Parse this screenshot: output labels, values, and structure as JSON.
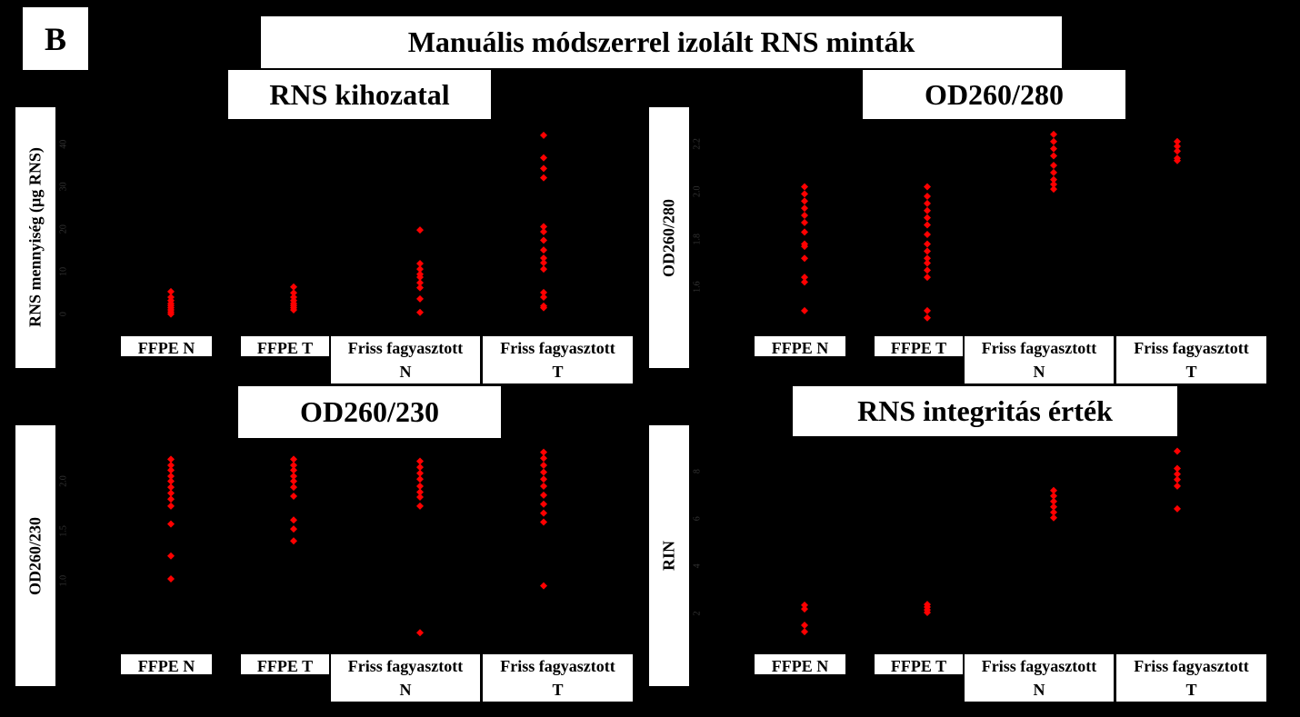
{
  "panel_label": "B",
  "title": "Manuális módszerrel izolált RNS minták",
  "chart_data": [
    {
      "type": "strip",
      "title": "RNS kihozatal",
      "y_label": "RNS mennyiség (µg RNS)",
      "color": "#ff0000",
      "categories": [
        "FFPE N",
        "FFPE T",
        "Friss fagyasztott\nN",
        "Friss fagyasztott\nT"
      ],
      "values": [
        [
          5.3,
          4.0,
          3.2,
          2.5,
          2.0,
          1.5,
          1.0,
          0.5,
          0
        ],
        [
          6.4,
          5.0,
          4.0,
          3.2,
          2.5,
          2.0,
          1.5,
          1.0
        ],
        [
          19.8,
          11.9,
          10.6,
          9.4,
          8.7,
          7.4,
          6.2,
          3.6,
          0.4
        ],
        [
          42.1,
          36.8,
          34.3,
          32.1,
          20.6,
          19.4,
          17.4,
          15.1,
          13.2,
          12.1,
          10.6,
          5.1,
          4.0,
          1.9,
          1.5
        ]
      ],
      "ylim": [
        -2,
        44
      ],
      "yticks": [
        0,
        10,
        20,
        30,
        40
      ]
    },
    {
      "type": "strip",
      "title": "OD260/280",
      "y_label": "OD260/280",
      "color": "#ff0000",
      "categories": [
        "FFPE N",
        "FFPE T",
        "Friss fagyasztott\nN",
        "Friss fagyasztott\nT"
      ],
      "values": [
        [
          2.02,
          1.99,
          1.96,
          1.93,
          1.9,
          1.87,
          1.83,
          1.78,
          1.77,
          1.72,
          1.64,
          1.62,
          1.5
        ],
        [
          2.02,
          1.98,
          1.95,
          1.92,
          1.89,
          1.86,
          1.82,
          1.78,
          1.75,
          1.72,
          1.7,
          1.67,
          1.64,
          1.5,
          1.47
        ],
        [
          2.24,
          2.21,
          2.18,
          2.15,
          2.11,
          2.08,
          2.05,
          2.03,
          2.01
        ],
        [
          2.21,
          2.19,
          2.17,
          2.14,
          2.13
        ]
      ],
      "ylim": [
        1.45,
        2.27
      ],
      "yticks": [
        1.6,
        1.8,
        {
          "value": 2,
          "label": "2.0"
        },
        2.2
      ]
    },
    {
      "type": "strip",
      "title": "OD260/230",
      "y_label": "OD260/230",
      "color": "#ff0000",
      "categories": [
        "FFPE N",
        "FFPE T",
        "Friss fagyasztott\nN",
        "Friss fagyasztott\nT"
      ],
      "values": [
        [
          2.22,
          2.16,
          2.11,
          2.05,
          2.0,
          1.94,
          1.88,
          1.82,
          1.75,
          1.57,
          1.25,
          1.02
        ],
        [
          2.22,
          2.16,
          2.11,
          2.05,
          2.0,
          1.94,
          1.85,
          1.61,
          1.52,
          1.4
        ],
        [
          2.2,
          2.14,
          2.08,
          2.02,
          1.95,
          1.89,
          1.84,
          1.75,
          0.48
        ],
        [
          2.29,
          2.23,
          2.16,
          2.09,
          2.02,
          1.95,
          1.86,
          1.77,
          1.68,
          1.59,
          0.95
        ]
      ],
      "ylim": [
        0.4,
        2.36
      ],
      "yticks": [
        {
          "value": 1,
          "label": "1.0"
        },
        1.5,
        {
          "value": 2,
          "label": "2.0"
        }
      ]
    },
    {
      "type": "strip",
      "title": "RNS integritás érték",
      "y_label": "RIN",
      "color": "#ff0000",
      "categories": [
        "FFPE N",
        "FFPE T",
        "Friss fagyasztott\nN",
        "Friss fagyasztott\nT"
      ],
      "values": [
        [
          2.35,
          2.19,
          1.5,
          1.23
        ],
        [
          2.38,
          2.27,
          2.15,
          2.04
        ],
        [
          7.19,
          6.96,
          6.73,
          6.5,
          6.27,
          6.04
        ],
        [
          8.85,
          8.12,
          7.88,
          7.65,
          7.38,
          6.42
        ]
      ],
      "ylim": [
        0.85,
        9.1
      ],
      "yticks": [
        2,
        4,
        6,
        8
      ]
    }
  ]
}
